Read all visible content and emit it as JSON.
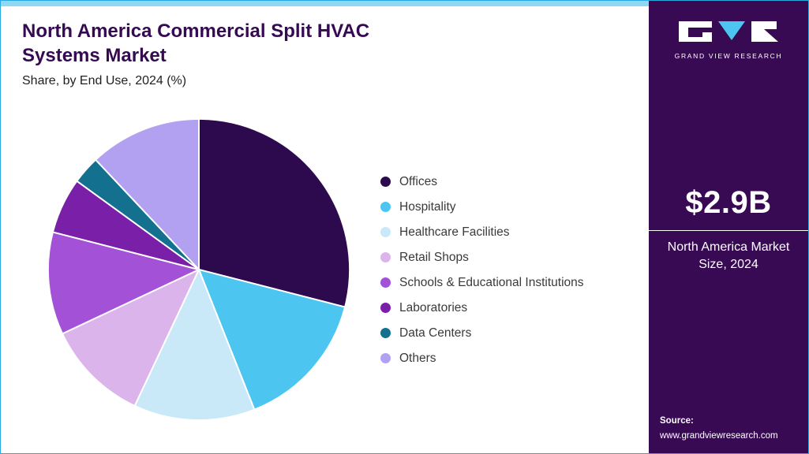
{
  "header": {
    "title_line1": "North America Commercial Split HVAC",
    "title_line2": "Systems Market",
    "subtitle": "Share, by End Use, 2024 (%)"
  },
  "sidebar": {
    "brand": "GRAND VIEW RESEARCH",
    "market_size": "$2.9B",
    "market_label": "North America Market Size, 2024",
    "source_label": "Source:",
    "source_url": "www.grandviewresearch.com",
    "bg_color": "#380a54",
    "accent_color": "#8fd8f5"
  },
  "chart_data": {
    "type": "pie",
    "title": "North America Commercial Split HVAC Systems Market Share, by End Use, 2024 (%)",
    "unit": "%",
    "total": 100,
    "legend_position": "right",
    "start_angle_deg": 0,
    "direction": "clockwise",
    "segments": [
      {
        "label": "Offices",
        "value": 29,
        "color": "#2d0a4e"
      },
      {
        "label": "Hospitality",
        "value": 15,
        "color": "#4cc5f0"
      },
      {
        "label": "Healthcare Facilities",
        "value": 13,
        "color": "#c9e9f8"
      },
      {
        "label": "Retail Shops",
        "value": 11,
        "color": "#dcb4ec"
      },
      {
        "label": "Schools & Educational Institutions",
        "value": 11,
        "color": "#a352d8"
      },
      {
        "label": "Laboratories",
        "value": 6,
        "color": "#7a1fa8"
      },
      {
        "label": "Data Centers",
        "value": 3,
        "color": "#13718f"
      },
      {
        "label": "Others",
        "value": 12,
        "color": "#b2a1f0"
      }
    ]
  }
}
